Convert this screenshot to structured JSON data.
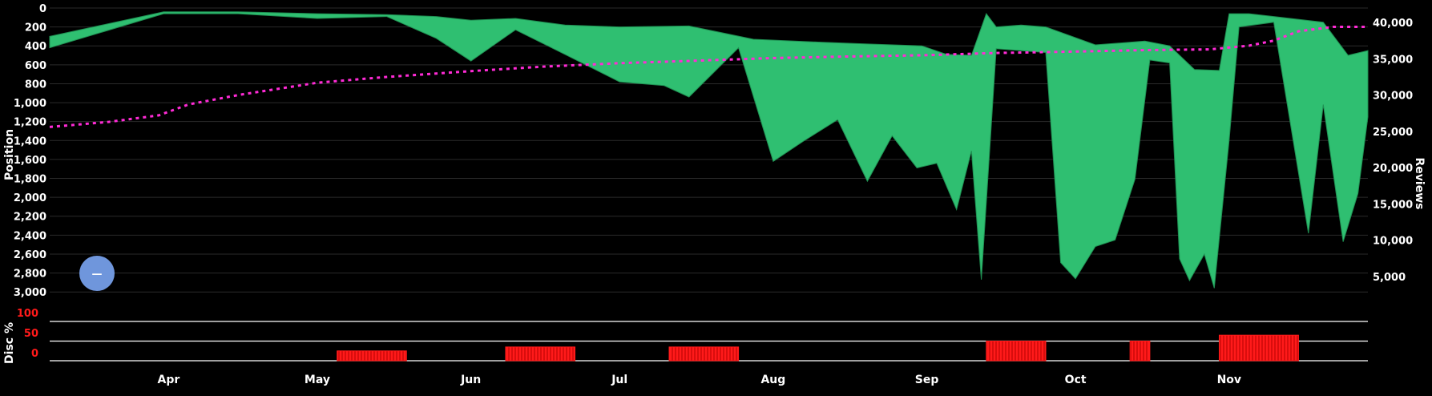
{
  "colors": {
    "background": "#000000",
    "grid": "#2a2a2a",
    "area": "#2fbf71",
    "area_edge": "#1f8f52",
    "reviews_line": "#ff2bd6",
    "bars": "#ff1a1a",
    "disc_ticks": "#ff1a1a",
    "zoom_button": "#6f96dc"
  },
  "chart_data": [
    {
      "type": "area",
      "ylabel": "Position",
      "y_inverted": true,
      "ylim": [
        0,
        3100
      ],
      "yticks": [
        "0",
        "200",
        "400",
        "600",
        "800",
        "1,000",
        "1,200",
        "1,400",
        "1,600",
        "1,800",
        "2,000",
        "2,200",
        "2,400",
        "2,600",
        "2,800",
        "3,000"
      ],
      "x_months": [
        "Apr",
        "May",
        "Jun",
        "Jul",
        "Aug",
        "Sep",
        "Oct",
        "Nov"
      ],
      "x_range": [
        "2023-03-08",
        "2023-11-29"
      ],
      "position_upper": [
        [
          "2023-03-08",
          300
        ],
        [
          "2023-03-31",
          40
        ],
        [
          "2023-04-15",
          40
        ],
        [
          "2023-05-01",
          60
        ],
        [
          "2023-05-15",
          70
        ],
        [
          "2023-05-25",
          90
        ],
        [
          "2023-06-01",
          130
        ],
        [
          "2023-06-10",
          110
        ],
        [
          "2023-06-20",
          180
        ],
        [
          "2023-07-01",
          200
        ],
        [
          "2023-07-15",
          190
        ],
        [
          "2023-07-28",
          330
        ],
        [
          "2023-08-10",
          360
        ],
        [
          "2023-08-20",
          380
        ],
        [
          "2023-08-31",
          400
        ],
        [
          "2023-09-05",
          490
        ],
        [
          "2023-09-10",
          500
        ],
        [
          "2023-09-13",
          60
        ],
        [
          "2023-09-15",
          200
        ],
        [
          "2023-09-20",
          180
        ],
        [
          "2023-09-25",
          200
        ],
        [
          "2023-10-05",
          390
        ],
        [
          "2023-10-15",
          350
        ],
        [
          "2023-10-20",
          400
        ],
        [
          "2023-10-25",
          650
        ],
        [
          "2023-10-30",
          660
        ],
        [
          "2023-11-01",
          60
        ],
        [
          "2023-11-05",
          60
        ],
        [
          "2023-11-10",
          90
        ],
        [
          "2023-11-20",
          150
        ],
        [
          "2023-11-25",
          500
        ],
        [
          "2023-11-29",
          450
        ]
      ],
      "position_lower": [
        [
          "2023-03-08",
          420
        ],
        [
          "2023-03-31",
          60
        ],
        [
          "2023-04-15",
          60
        ],
        [
          "2023-05-01",
          110
        ],
        [
          "2023-05-15",
          90
        ],
        [
          "2023-05-25",
          320
        ],
        [
          "2023-06-01",
          560
        ],
        [
          "2023-06-10",
          230
        ],
        [
          "2023-06-20",
          490
        ],
        [
          "2023-07-01",
          780
        ],
        [
          "2023-07-10",
          820
        ],
        [
          "2023-07-15",
          940
        ],
        [
          "2023-07-25",
          420
        ],
        [
          "2023-08-01",
          1620
        ],
        [
          "2023-08-07",
          1410
        ],
        [
          "2023-08-14",
          1180
        ],
        [
          "2023-08-20",
          1830
        ],
        [
          "2023-08-25",
          1350
        ],
        [
          "2023-08-30",
          1690
        ],
        [
          "2023-09-03",
          1640
        ],
        [
          "2023-09-07",
          2130
        ],
        [
          "2023-09-10",
          1510
        ],
        [
          "2023-09-12",
          2870
        ],
        [
          "2023-09-15",
          430
        ],
        [
          "2023-09-25",
          470
        ],
        [
          "2023-09-28",
          2690
        ],
        [
          "2023-10-01",
          2860
        ],
        [
          "2023-10-05",
          2520
        ],
        [
          "2023-10-09",
          2450
        ],
        [
          "2023-10-13",
          1810
        ],
        [
          "2023-10-16",
          550
        ],
        [
          "2023-10-20",
          580
        ],
        [
          "2023-10-22",
          2650
        ],
        [
          "2023-10-24",
          2880
        ],
        [
          "2023-10-27",
          2600
        ],
        [
          "2023-10-29",
          2960
        ],
        [
          "2023-11-01",
          1400
        ],
        [
          "2023-11-03",
          200
        ],
        [
          "2023-11-10",
          150
        ],
        [
          "2023-11-17",
          2380
        ],
        [
          "2023-11-20",
          1020
        ],
        [
          "2023-11-24",
          2470
        ],
        [
          "2023-11-27",
          1960
        ],
        [
          "2023-11-29",
          1150
        ]
      ]
    },
    {
      "type": "line",
      "ylabel": "Reviews",
      "yticks": [
        "5,000",
        "10,000",
        "15,000",
        "20,000",
        "25,000",
        "30,000",
        "35,000",
        "40,000"
      ],
      "ylim": [
        0,
        42000
      ],
      "series": [
        {
          "values": [
            [
              "2023-03-08",
              25600
            ],
            [
              "2023-03-20",
              26300
            ],
            [
              "2023-03-30",
              27200
            ],
            [
              "2023-04-05",
              28700
            ],
            [
              "2023-04-15",
              30000
            ],
            [
              "2023-05-01",
              31700
            ],
            [
              "2023-05-15",
              32500
            ],
            [
              "2023-06-01",
              33300
            ],
            [
              "2023-06-15",
              33900
            ],
            [
              "2023-07-01",
              34400
            ],
            [
              "2023-07-15",
              34700
            ],
            [
              "2023-08-01",
              35100
            ],
            [
              "2023-08-15",
              35300
            ],
            [
              "2023-09-01",
              35500
            ],
            [
              "2023-09-15",
              35800
            ],
            [
              "2023-10-01",
              36000
            ],
            [
              "2023-10-15",
              36200
            ],
            [
              "2023-10-28",
              36300
            ],
            [
              "2023-11-05",
              36800
            ],
            [
              "2023-11-10",
              37500
            ],
            [
              "2023-11-15",
              38800
            ],
            [
              "2023-11-22",
              39400
            ],
            [
              "2023-11-29",
              39400
            ]
          ]
        }
      ]
    },
    {
      "type": "bar",
      "ylabel": "Disc %",
      "yticks": [
        "100",
        "50",
        "0"
      ],
      "ylim": [
        0,
        100
      ],
      "periods": [
        {
          "start": "2023-05-05",
          "end": "2023-05-19",
          "value": 25
        },
        {
          "start": "2023-06-08",
          "end": "2023-06-22",
          "value": 35
        },
        {
          "start": "2023-07-11",
          "end": "2023-07-25",
          "value": 35
        },
        {
          "start": "2023-09-13",
          "end": "2023-09-25",
          "value": 50
        },
        {
          "start": "2023-10-12",
          "end": "2023-10-16",
          "value": 50
        },
        {
          "start": "2023-10-30",
          "end": "2023-11-15",
          "value": 65
        }
      ]
    }
  ],
  "zoom_button": {
    "label": "—"
  }
}
